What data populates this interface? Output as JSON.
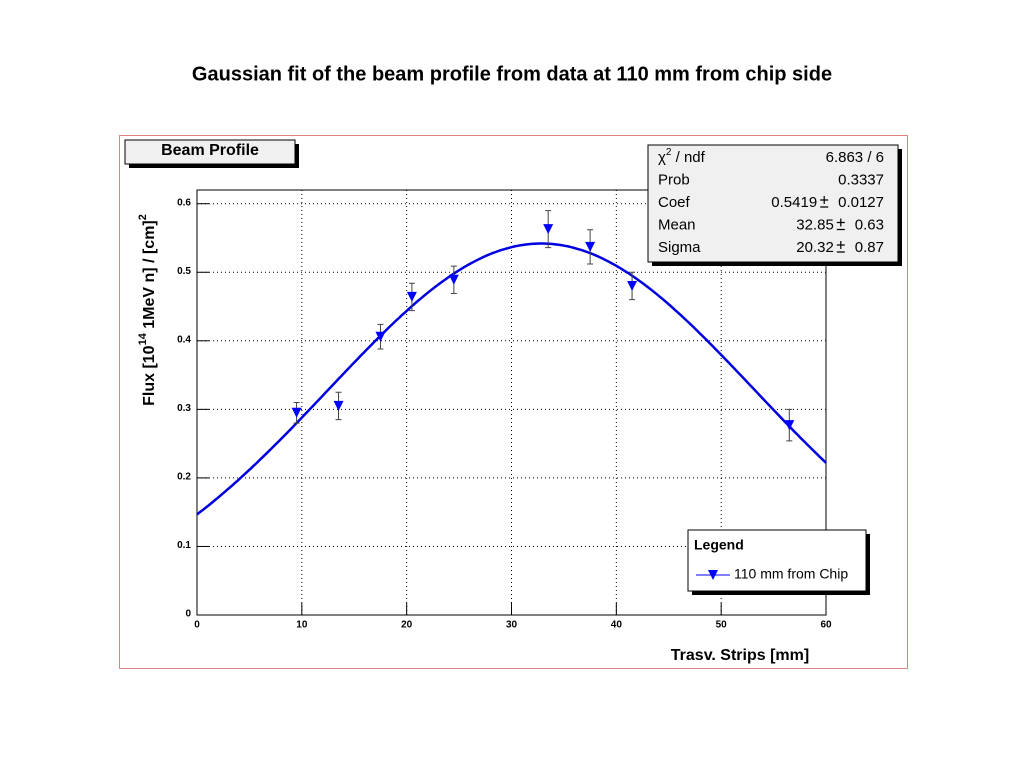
{
  "chart_data": {
    "type": "scatter",
    "title": "Gaussian fit of the beam profile from data at 110 mm from chip side",
    "plot_title": "Beam Profile",
    "xlabel": "Trasv. Strips [mm]",
    "ylabel_parts": [
      {
        "text": "Flux [10"
      },
      {
        "text": "14",
        "sup": true
      },
      {
        "text": " 1MeV n] / [cm]"
      },
      {
        "text": "2",
        "sup": true
      }
    ],
    "series": [
      {
        "name": "110 mm from Chip",
        "color": "#0000ff",
        "x": [
          9.5,
          13.5,
          17.5,
          20.5,
          24.5,
          33.5,
          37.5,
          41.5,
          56.5
        ],
        "values": [
          0.295,
          0.305,
          0.406,
          0.464,
          0.489,
          0.563,
          0.537,
          0.48,
          0.277
        ],
        "errors": [
          0.015,
          0.02,
          0.018,
          0.02,
          0.02,
          0.027,
          0.025,
          0.02,
          0.023
        ]
      }
    ],
    "fit_color": "#0000e0",
    "stats": [
      {
        "label": "χ",
        "sup": "2",
        "rest": " / ndf",
        "value": "6.863 / 6"
      },
      {
        "label": "Prob",
        "value": 0.3337
      },
      {
        "label": "Coef",
        "value": 0.5419,
        "error": 0.0127
      },
      {
        "label": "Mean",
        "value": 32.85,
        "error": 0.63
      },
      {
        "label": "Sigma",
        "value": 20.32,
        "error": 0.87
      }
    ],
    "legend_title": "Legend",
    "xlim": [
      0,
      60
    ],
    "ylim": [
      0,
      0.62
    ],
    "xticks": [
      0,
      10,
      20,
      30,
      40,
      50,
      60
    ],
    "yticks": [
      0,
      0.1,
      0.2,
      0.3,
      0.4,
      0.5,
      0.6
    ],
    "grid": true
  }
}
